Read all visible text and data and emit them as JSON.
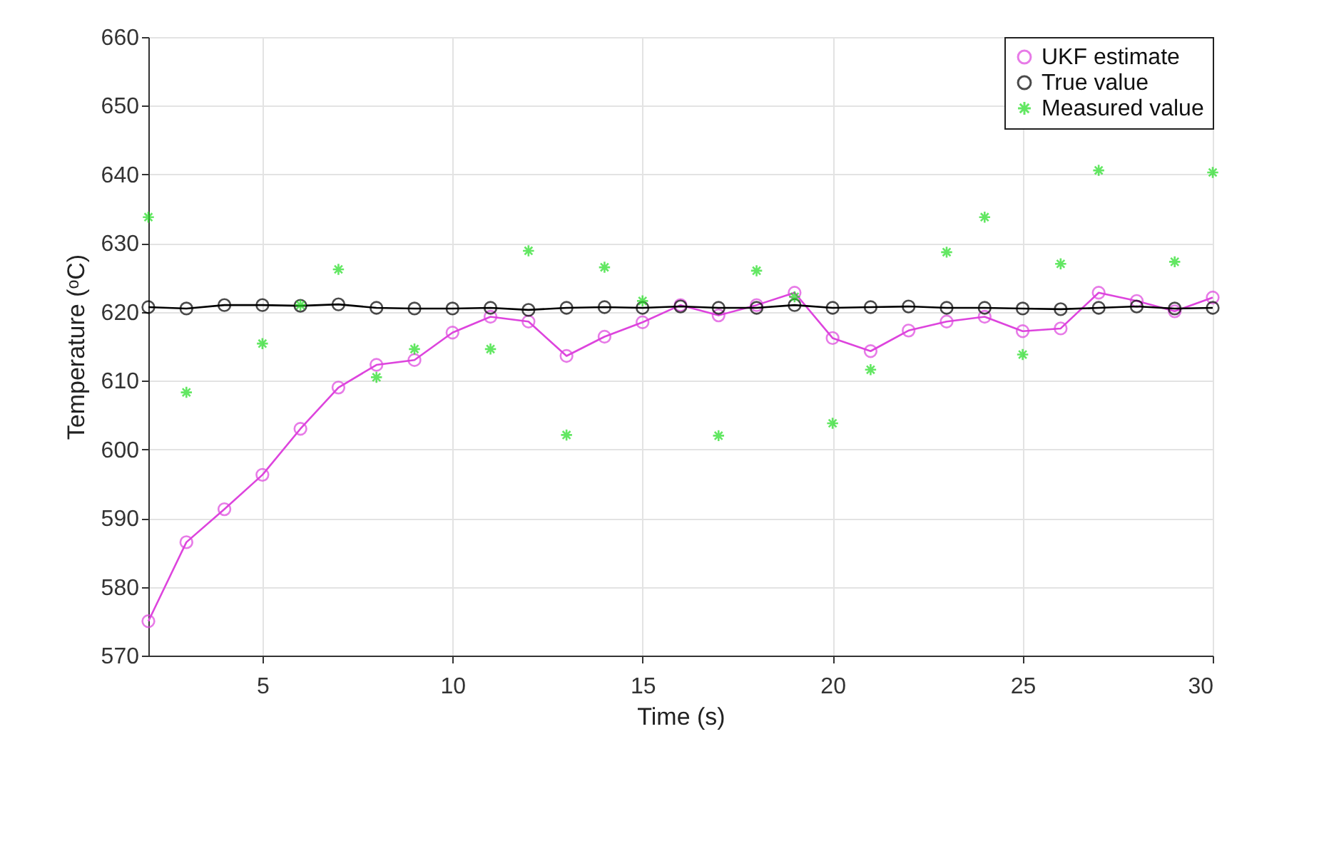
{
  "chart_data": {
    "type": "line",
    "xlabel": "Time (s)",
    "ylabel": "Temperature (ᵒC)",
    "x": [
      2,
      3,
      4,
      5,
      6,
      7,
      8,
      9,
      10,
      11,
      12,
      13,
      14,
      15,
      16,
      17,
      18,
      19,
      20,
      21,
      22,
      23,
      24,
      25,
      26,
      27,
      28,
      29,
      30
    ],
    "series": [
      {
        "name": "UKF estimate",
        "marker": "circle",
        "color": "#dd44dd",
        "values": [
          575,
          586.5,
          591.3,
          596.3,
          603,
          609,
          612.3,
          613,
          617,
          619.3,
          618.6,
          613.6,
          616.4,
          618.5,
          621,
          619.5,
          621,
          622.8,
          616.2,
          614.3,
          617.3,
          618.6,
          619.3,
          617.2,
          617.6,
          622.8,
          621.6,
          620.1,
          622.1
        ]
      },
      {
        "name": "True value",
        "marker": "circle",
        "color": "#000000",
        "values": [
          620.7,
          620.5,
          621,
          621,
          620.9,
          621.1,
          620.6,
          620.5,
          620.5,
          620.6,
          620.3,
          620.6,
          620.7,
          620.6,
          620.8,
          620.6,
          620.6,
          621,
          620.6,
          620.7,
          620.8,
          620.6,
          620.6,
          620.5,
          620.4,
          620.6,
          620.8,
          620.5,
          620.6
        ]
      },
      {
        "name": "Measured value",
        "type": "scatter",
        "marker": "cross",
        "color": "#22dd22",
        "values": [
          633.8,
          608.3,
          null,
          615.4,
          621,
          626.2,
          610.5,
          614.6,
          null,
          614.6,
          628.9,
          602.1,
          626.5,
          621.6,
          null,
          602,
          626,
          622.2,
          603.8,
          611.6,
          null,
          628.7,
          633.8,
          613.8,
          627,
          640.6,
          null,
          627.3,
          640.3
        ]
      }
    ],
    "xlim": [
      2,
      30
    ],
    "xticks": [
      5,
      10,
      15,
      20,
      25,
      30
    ],
    "ylim": [
      570,
      660
    ],
    "yticks": [
      570,
      580,
      590,
      600,
      610,
      620,
      630,
      640,
      650,
      660
    ],
    "grid": true,
    "legend": "top right"
  }
}
